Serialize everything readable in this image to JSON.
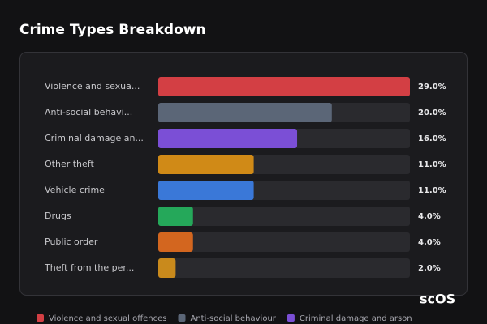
{
  "chart_data": {
    "type": "bar",
    "orientation": "horizontal",
    "title": "Crime Types Breakdown",
    "categories": [
      "Violence and sexua...",
      "Anti-social behavi...",
      "Criminal damage an...",
      "Other theft",
      "Vehicle crime",
      "Drugs",
      "Public order",
      "Theft from the per..."
    ],
    "values": [
      29,
      20,
      16,
      11,
      11,
      4,
      4,
      2
    ],
    "value_labels": [
      "29.0%",
      "20.0%",
      "16.0%",
      "11.0%",
      "11.0%",
      "4.0%",
      "4.0%",
      "2.0%"
    ],
    "colors": [
      "#d33f44",
      "#5b6677",
      "#7b4fd6",
      "#d08a17",
      "#3a78d8",
      "#25a85a",
      "#d3661f",
      "#c98a1c"
    ],
    "xlim": [
      0,
      29
    ],
    "legend": [
      {
        "name": "Violence and sexual offences",
        "color": "#d33f44"
      },
      {
        "name": "Anti-social behaviour",
        "color": "#5b6677"
      },
      {
        "name": "Criminal damage and arson",
        "color": "#7b4fd6"
      }
    ],
    "watermark": "scOS"
  }
}
